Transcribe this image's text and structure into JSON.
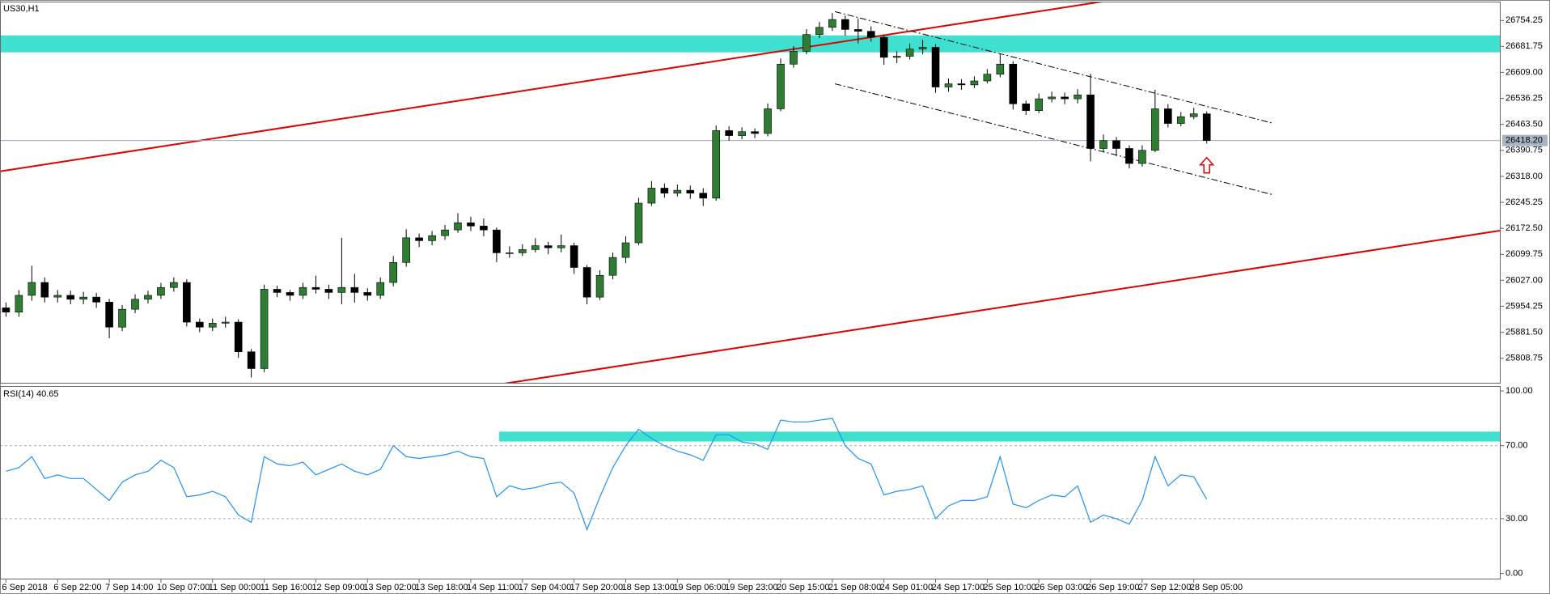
{
  "chart_data": [
    {
      "type": "candlestick",
      "title": "US30,H1",
      "categories": [
        "6 Sep 2018",
        null,
        null,
        null,
        "6 Sep 22:00",
        null,
        null,
        null,
        "7 Sep 14:00",
        null,
        null,
        null,
        "10 Sep 07:00",
        null,
        null,
        null,
        "11 Sep 00:00",
        null,
        null,
        null,
        "11 Sep 16:00",
        null,
        null,
        null,
        "12 Sep 09:00",
        null,
        null,
        null,
        "13 Sep 02:00",
        null,
        null,
        null,
        "13 Sep 18:00",
        null,
        null,
        null,
        "14 Sep 11:00",
        null,
        null,
        null,
        "17 Sep 04:00",
        null,
        null,
        null,
        "17 Sep 20:00",
        null,
        null,
        null,
        "18 Sep 13:00",
        null,
        null,
        null,
        "19 Sep 06:00",
        null,
        null,
        null,
        "19 Sep 23:00",
        null,
        null,
        null,
        "20 Sep 15:00",
        null,
        null,
        null,
        "21 Sep 08:00",
        null,
        null,
        null,
        "24 Sep 01:00",
        null,
        null,
        null,
        "24 Sep 17:00",
        null,
        null,
        null,
        "25 Sep 10:00",
        null,
        null,
        null,
        "26 Sep 03:00",
        null,
        null,
        null,
        "26 Sep 19:00",
        null,
        null,
        null,
        "27 Sep 12:00",
        null,
        null,
        null,
        "28 Sep 05:00",
        null
      ],
      "open": [
        25950,
        25938,
        25985,
        26021,
        25980,
        25985,
        25974,
        25980,
        25966,
        25896,
        25946,
        25974,
        25985,
        26007,
        26021,
        25910,
        25896,
        25907,
        25910,
        25827,
        25780,
        26002,
        25993,
        25985,
        26007,
        26002,
        25993,
        26007,
        25993,
        25985,
        26021,
        26077,
        26146,
        26138,
        26152,
        26168,
        26188,
        26179,
        26168,
        26104,
        26104,
        26113,
        26124,
        26118,
        26124,
        26063,
        25980,
        26041,
        26091,
        26132,
        26243,
        26285,
        26271,
        26279,
        26271,
        26257,
        26446,
        26432,
        26443,
        26438,
        26507,
        26632,
        26668,
        26715,
        26735,
        26757,
        26729,
        26724,
        26707,
        26651,
        26654,
        26674,
        26679,
        26568,
        26577,
        26574,
        26585,
        26604,
        26632,
        26521,
        26502,
        26535,
        26540,
        26535,
        26546,
        26396,
        26418,
        26396,
        26354,
        26391,
        26507,
        26466,
        26485,
        26493
      ],
      "high": [
        25965,
        26000,
        26068,
        26035,
        26000,
        25998,
        25995,
        25992,
        25975,
        25958,
        25988,
        25998,
        26020,
        26035,
        26030,
        25920,
        25920,
        25925,
        25918,
        25835,
        26015,
        26012,
        26000,
        26020,
        26040,
        26015,
        26146,
        26045,
        26005,
        26035,
        26095,
        26170,
        26158,
        26165,
        26182,
        26215,
        26205,
        26200,
        26175,
        26122,
        26128,
        26145,
        26135,
        26155,
        26132,
        26070,
        26055,
        26105,
        26150,
        26258,
        26305,
        26298,
        26295,
        26292,
        26285,
        26460,
        26458,
        26455,
        26452,
        26522,
        26648,
        26682,
        26730,
        26750,
        26775,
        26768,
        26760,
        26738,
        26715,
        26668,
        26690,
        26700,
        26688,
        26592,
        26590,
        26598,
        26618,
        26662,
        26640,
        26530,
        26550,
        26555,
        26552,
        26562,
        26605,
        26435,
        26428,
        26405,
        26405,
        26560,
        26520,
        26498,
        26510,
        26500
      ],
      "low": [
        25925,
        25925,
        25970,
        25965,
        25965,
        25960,
        25960,
        25950,
        25865,
        25885,
        25935,
        25962,
        25975,
        25995,
        25898,
        25882,
        25885,
        25895,
        25810,
        25755,
        25770,
        25980,
        25970,
        25975,
        25990,
        25975,
        25960,
        25965,
        25970,
        25975,
        26010,
        26065,
        26120,
        26125,
        26140,
        26160,
        26165,
        26150,
        26078,
        26090,
        26095,
        26105,
        26100,
        26105,
        26045,
        25960,
        25972,
        26030,
        26075,
        26125,
        26235,
        26258,
        26262,
        26255,
        26235,
        26250,
        26418,
        26422,
        26425,
        26430,
        26500,
        26622,
        26660,
        26705,
        26725,
        26712,
        26690,
        26695,
        26630,
        26635,
        26645,
        26660,
        26552,
        26555,
        26560,
        26565,
        26578,
        26595,
        26505,
        26490,
        26495,
        26525,
        26520,
        26522,
        26360,
        26385,
        26375,
        26340,
        26345,
        26385,
        26455,
        26458,
        26478,
        26410
      ],
      "close": [
        25938,
        25985,
        26021,
        25980,
        25985,
        25974,
        25980,
        25966,
        25896,
        25946,
        25974,
        25985,
        26007,
        26021,
        25910,
        25896,
        25907,
        25910,
        25827,
        25780,
        26002,
        25993,
        25985,
        26007,
        26002,
        25993,
        26007,
        25993,
        25985,
        26021,
        26077,
        26146,
        26138,
        26152,
        26168,
        26188,
        26179,
        26168,
        26104,
        26104,
        26113,
        26124,
        26118,
        26124,
        26063,
        25980,
        26041,
        26091,
        26132,
        26243,
        26285,
        26271,
        26279,
        26271,
        26257,
        26446,
        26432,
        26443,
        26438,
        26507,
        26632,
        26668,
        26715,
        26735,
        26757,
        26729,
        26724,
        26707,
        26651,
        26654,
        26674,
        26679,
        26568,
        26577,
        26574,
        26585,
        26604,
        26632,
        26521,
        26502,
        26535,
        26540,
        26535,
        26546,
        26396,
        26418,
        26396,
        26354,
        26391,
        26507,
        26466,
        26485,
        26493,
        26418.2
      ],
      "bull_color": "#2e7d32",
      "bear_color": "#000000",
      "ylim": [
        25738,
        26807
      ],
      "yticks": [
        26754.25,
        26681.75,
        {
          "value": 26609,
          "label": "26609.00"
        },
        26536.25,
        {
          "value": 26463.5,
          "label": "26463.50"
        },
        26390.75,
        {
          "value": 26318,
          "label": "26318.00"
        },
        26245.25,
        {
          "value": 26172.5,
          "label": "26172.50"
        },
        26099.75,
        {
          "value": 26027,
          "label": "26027.00"
        },
        25954.25,
        {
          "value": 25881.5,
          "label": "25881.50"
        },
        25808.75
      ],
      "last_price": {
        "value": 26418.2,
        "label": "26418.20"
      },
      "zones": [
        {
          "from": 26665,
          "to": 26712.6,
          "start": -0.5,
          "color": "#40e0d0"
        }
      ],
      "trendlines": [
        {
          "x": [
            -0.46,
            84.9
          ],
          "y": [
            26332,
            26807
          ],
          "color": "#e00000",
          "style": "solid"
        },
        {
          "x": [
            38.6,
            115.7
          ],
          "y": [
            25738,
            26166
          ],
          "color": "#e00000",
          "style": "solid"
        },
        {
          "x": [
            64.2,
            98.2
          ],
          "y": [
            26779,
            26466
          ],
          "color": "#000000",
          "style": "dashdot"
        },
        {
          "x": [
            64.2,
            98.2
          ],
          "y": [
            26577,
            26266
          ],
          "color": "#000000",
          "style": "dashdot"
        }
      ],
      "arrow": {
        "x": 93,
        "y": 26350,
        "color": "#e00000"
      }
    },
    {
      "type": "line",
      "title": "RSI(14) 40.65",
      "values": [
        56,
        58,
        64,
        52,
        54,
        52,
        52,
        46,
        40,
        50,
        54,
        56,
        62,
        58,
        42,
        43,
        45,
        42,
        32,
        28,
        64,
        60,
        59,
        61,
        54,
        57,
        60,
        56,
        54,
        57,
        70,
        64,
        63,
        64,
        65,
        67,
        64,
        63,
        42,
        48,
        46,
        47,
        49,
        50,
        44,
        24,
        42,
        58,
        70,
        79,
        74,
        70,
        67,
        65,
        62,
        76,
        76,
        72,
        71,
        68,
        84,
        83,
        83,
        84,
        85,
        70,
        63,
        60,
        43,
        45,
        46,
        48,
        30,
        37,
        40,
        40,
        42,
        64,
        38,
        36,
        40,
        43,
        42,
        48,
        28,
        32,
        30,
        27,
        40,
        64,
        48,
        54,
        53,
        40.65
      ],
      "color": "#1e90ff",
      "ylim": [
        -3.3,
        102.7
      ],
      "yticks": [
        {
          "value": 100,
          "label": "100.00"
        },
        {
          "value": 70,
          "label": "70.00"
        },
        {
          "value": 30,
          "label": "30.00"
        },
        {
          "value": 0,
          "label": "0.00"
        }
      ],
      "levels": [
        70,
        30
      ],
      "zones": [
        {
          "from": 72.3,
          "to": 77.7,
          "start": 38.2,
          "color": "#40e0d0"
        }
      ]
    }
  ]
}
